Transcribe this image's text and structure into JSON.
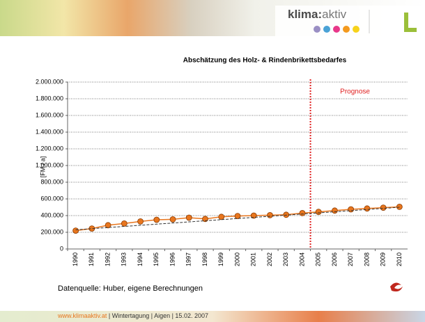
{
  "header": {
    "logo_bold": "klima:",
    "logo_light": "aktiv"
  },
  "chart_data": {
    "type": "line",
    "title": "Abschätzung des Holz- & Rindenbrikettsbedarfes",
    "ylabel": "[FM / a]",
    "annotation": "Prognose",
    "forecast_start": "2005",
    "categories": [
      "1990",
      "1991",
      "1992",
      "1993",
      "1994",
      "1995",
      "1996",
      "1997",
      "1998",
      "1999",
      "2000",
      "2001",
      "2002",
      "2003",
      "2004",
      "2005",
      "2006",
      "2007",
      "2008",
      "2009",
      "2010"
    ],
    "series": [
      {
        "color": "#e8761e",
        "values": [
          220000,
          245000,
          285000,
          305000,
          330000,
          350000,
          355000,
          375000,
          360000,
          385000,
          395000,
          400000,
          405000,
          410000,
          430000,
          445000,
          460000,
          475000,
          485000,
          495000,
          505000
        ]
      },
      {
        "color": "#333333",
        "dashed": true,
        "values": [
          230000,
          243500,
          257000,
          270500,
          284000,
          297500,
          311000,
          324500,
          338000,
          351500,
          365000,
          378500,
          392000,
          405500,
          419000,
          432500,
          446000,
          459500,
          473000,
          486500,
          500000
        ]
      }
    ],
    "ylim": [
      0,
      2000000
    ],
    "yticks": [
      0,
      {
        "value": 200000,
        "label": "200.000"
      },
      {
        "value": 400000,
        "label": "400.000"
      },
      {
        "value": 600000,
        "label": "600.000"
      },
      {
        "value": 800000,
        "label": "800.000"
      },
      {
        "value": 1000000,
        "label": "1.000.000"
      },
      {
        "value": 1200000,
        "label": "1.200.000"
      },
      {
        "value": 1400000,
        "label": "1.400.000"
      },
      {
        "value": 1600000,
        "label": "1.600.000"
      },
      {
        "value": 1800000,
        "label": "1.800.000"
      },
      {
        "value": 2000000,
        "label": "2.000.000"
      }
    ],
    "grid": true
  },
  "source": "Datenquelle: Huber, eigene Berechnungen",
  "footer": {
    "link": "www.klimaaktiv.at",
    "text": " | Wintertagung | Aigen | 15.02. 2007"
  }
}
